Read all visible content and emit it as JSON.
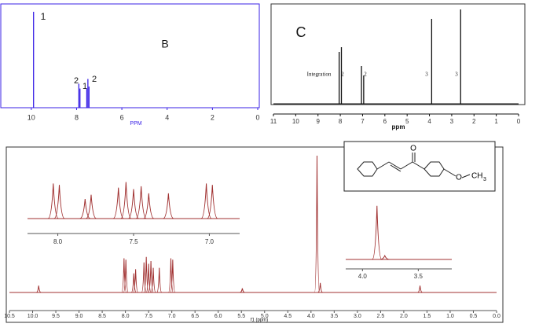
{
  "chart_data": [
    {
      "type": "stick",
      "title": "B",
      "xlabel": "PPM",
      "color": "#3a22e6",
      "x": [
        9.9,
        7.9,
        7.85,
        7.55,
        7.5,
        7.45
      ],
      "values": [
        100,
        25,
        20,
        20,
        30,
        22
      ],
      "xlim": [
        11,
        0
      ],
      "ylim": [
        0,
        100
      ],
      "xticks": [
        0,
        2,
        4,
        6,
        8,
        10
      ],
      "annotations": [
        "1",
        "2",
        "1",
        "2"
      ]
    },
    {
      "type": "stick",
      "title": "C",
      "xlabel": "ppm",
      "color": "#111111",
      "x": [
        8.05,
        7.95,
        7.05,
        6.95,
        3.9,
        2.6
      ],
      "values": [
        55,
        60,
        40,
        30,
        90,
        100
      ],
      "xlim": [
        11,
        0
      ],
      "ylim": [
        0,
        100
      ],
      "xticks": [
        11,
        10,
        9,
        8,
        7,
        6,
        5,
        4,
        3,
        2,
        1,
        0
      ],
      "annotations": [
        "Integration",
        "2",
        "2",
        "3",
        "3"
      ]
    },
    {
      "type": "spectrum",
      "xlabel": "f1 (ppm)",
      "color": "#a03030",
      "x": [
        9.87,
        8.03,
        7.99,
        7.82,
        7.78,
        7.6,
        7.55,
        7.5,
        7.45,
        7.4,
        7.27,
        7.02,
        6.98,
        5.48,
        3.87,
        3.8,
        1.65
      ],
      "values": [
        5,
        25,
        24,
        14,
        17,
        22,
        26,
        21,
        23,
        18,
        18,
        25,
        24,
        3,
        100,
        7,
        5
      ],
      "xlim": [
        10.5,
        0
      ],
      "ylim": [
        0,
        100
      ],
      "xticks": [
        {
          "value": 10.5,
          "label": "10.5"
        },
        {
          "value": 10,
          "label": "10.0"
        },
        {
          "value": 9.5,
          "label": "9.5"
        },
        {
          "value": 9,
          "label": "9.0"
        },
        {
          "value": 8.5,
          "label": "8.5"
        },
        {
          "value": 8,
          "label": "8.0"
        },
        {
          "value": 7.5,
          "label": "7.5"
        },
        {
          "value": 7,
          "label": "7.0"
        },
        {
          "value": 6.5,
          "label": "6.5"
        },
        {
          "value": 6,
          "label": "6.0"
        },
        {
          "value": 5.5,
          "label": "5.5"
        },
        {
          "value": 5,
          "label": "5.0"
        },
        {
          "value": 4.5,
          "label": "4.5"
        },
        {
          "value": 4,
          "label": "4.0"
        },
        {
          "value": 3.5,
          "label": "3.5"
        },
        {
          "value": 3,
          "label": "3.0"
        },
        {
          "value": 2.5,
          "label": "2.5"
        },
        {
          "value": 2,
          "label": "2.0"
        },
        {
          "value": 1.5,
          "label": "1.5"
        },
        {
          "value": 1,
          "label": "1.0"
        },
        {
          "value": 0.5,
          "label": "0.5"
        },
        {
          "value": 0,
          "label": "0.0"
        }
      ],
      "insets": [
        {
          "xlim": [
            8.2,
            6.8
          ],
          "ylim": [
            0,
            28
          ],
          "xticks": [
            {
              "value": 8,
              "label": "8.0"
            },
            {
              "value": 7.5,
              "label": "7.5"
            },
            {
              "value": 7,
              "label": "7.0"
            }
          ]
        },
        {
          "xlim": [
            4.15,
            3.2
          ],
          "ylim": [
            0,
            110
          ],
          "xticks": [
            {
              "value": 4,
              "label": "4.0"
            },
            {
              "value": 3.5,
              "label": "3.5"
            }
          ]
        }
      ],
      "structure": {
        "carbonyl": "O",
        "ether": "O",
        "methyl": "CH",
        "methyl_sub": "3"
      }
    }
  ]
}
